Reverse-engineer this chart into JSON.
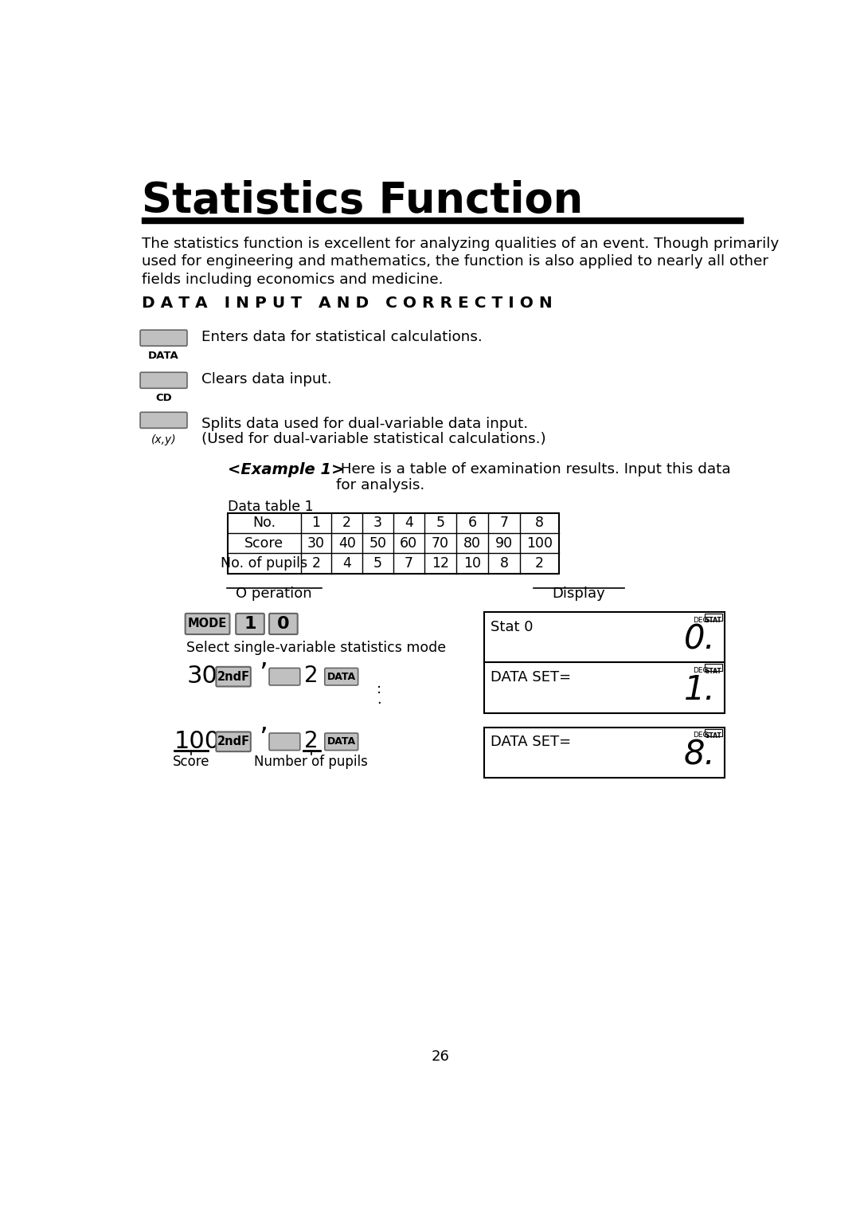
{
  "title": "Statistics Function",
  "intro_text": [
    "The statistics function is excellent for analyzing qualities of an event. Though primarily",
    "used for engineering and mathematics, the function is also applied to nearly all other",
    "fields including economics and medicine."
  ],
  "section_title": "D A T A   I N P U T   A N D   C O R R E C T I O N",
  "key1_desc": "Enters data for statistical calculations.",
  "key2_desc": "Clears data input.",
  "key3_desc1": "Splits data used for dual-variable data input.",
  "key3_desc2": "(Used for dual-variable statistical calculations.)",
  "example_bold": "<Example 1>",
  "example_rest1": " Here is a table of examination results. Input this data",
  "example_rest2": "for analysis.",
  "table_caption": "Data table 1",
  "table_headers": [
    "No.",
    "1",
    "2",
    "3",
    "4",
    "5",
    "6",
    "7",
    "8"
  ],
  "table_row1": [
    "Score",
    "30",
    "40",
    "50",
    "60",
    "70",
    "80",
    "90",
    "100"
  ],
  "table_row2": [
    "No. of pupils",
    "2",
    "4",
    "5",
    "7",
    "12",
    "10",
    "8",
    "2"
  ],
  "op_label": "O peration",
  "disp_label": "Display",
  "page_num": "26",
  "bg_color": "#ffffff",
  "text_color": "#000000",
  "key_bg": "#c0c0c0",
  "key_border": "#666666"
}
